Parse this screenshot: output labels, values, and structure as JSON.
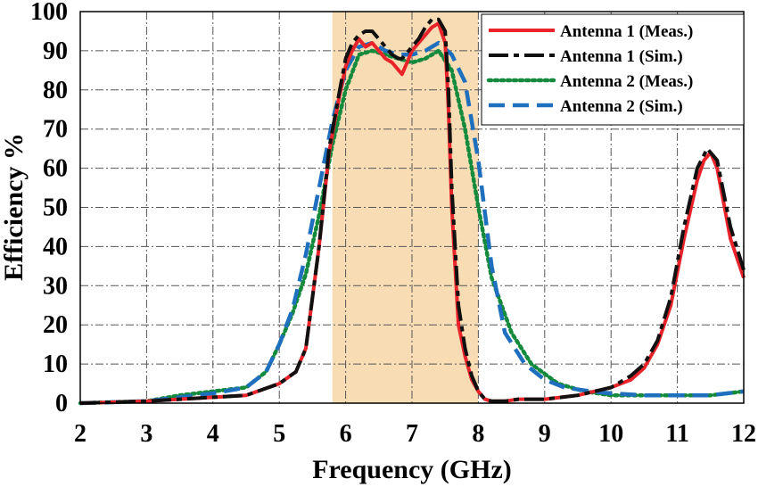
{
  "chart_data": {
    "type": "line",
    "xlabel": "Frequency (GHz)",
    "ylabel": "Efficiency %",
    "xlim": [
      2,
      12
    ],
    "ylim": [
      0,
      100
    ],
    "xticks": [
      2,
      3,
      4,
      5,
      6,
      7,
      8,
      9,
      10,
      11,
      12
    ],
    "yticks": [
      0,
      10,
      20,
      30,
      40,
      50,
      60,
      70,
      80,
      90,
      100
    ],
    "grid": true,
    "legend_position": "top-right",
    "highlight_band": {
      "from": 5.8,
      "to": 8.0,
      "color": "#f8dcb4"
    },
    "series": [
      {
        "name": "Antenna 1 (Meas.)",
        "color": "#e8232a",
        "style": "solid",
        "x": [
          2,
          3,
          3.5,
          4,
          4.5,
          5,
          5.25,
          5.4,
          5.6,
          5.75,
          5.9,
          6.0,
          6.1,
          6.2,
          6.3,
          6.4,
          6.5,
          6.6,
          6.7,
          6.8,
          6.85,
          6.9,
          7.0,
          7.1,
          7.2,
          7.3,
          7.4,
          7.5,
          7.55,
          7.6,
          7.7,
          7.8,
          7.9,
          8.0,
          8.1,
          8.2,
          8.4,
          8.6,
          9,
          9.5,
          10,
          10.3,
          10.5,
          10.7,
          10.9,
          11.1,
          11.3,
          11.4,
          11.5,
          11.6,
          11.8,
          12
        ],
        "y": [
          0,
          0.5,
          1,
          1.5,
          2,
          5,
          8,
          14,
          40,
          64,
          78,
          86,
          90,
          93,
          91,
          92,
          90,
          88,
          87,
          85,
          84,
          86,
          90,
          92,
          94,
          96,
          97,
          92,
          75,
          50,
          20,
          12,
          6,
          3,
          1,
          0.5,
          0.5,
          1,
          1,
          2,
          4,
          6,
          9,
          15,
          25,
          42,
          57,
          62,
          64,
          60,
          42,
          32
        ]
      },
      {
        "name": "Antenna 1 (Sim.)",
        "color": "#111111",
        "style": "longdash",
        "x": [
          2,
          3,
          3.5,
          4,
          4.5,
          5,
          5.25,
          5.4,
          5.6,
          5.75,
          5.9,
          6.0,
          6.1,
          6.2,
          6.3,
          6.4,
          6.5,
          6.6,
          6.7,
          6.8,
          6.85,
          6.9,
          7.0,
          7.1,
          7.2,
          7.3,
          7.4,
          7.5,
          7.55,
          7.6,
          7.7,
          7.8,
          7.9,
          8.0,
          8.1,
          8.2,
          8.4,
          8.6,
          9,
          9.5,
          10,
          10.3,
          10.5,
          10.7,
          10.9,
          11.1,
          11.3,
          11.45,
          11.6,
          11.8,
          12
        ],
        "y": [
          0,
          0.5,
          1,
          1.5,
          2,
          5,
          8,
          14,
          40,
          65,
          79,
          88,
          92,
          94,
          95,
          95,
          93,
          91,
          89,
          88,
          88,
          89,
          91,
          93,
          96,
          98,
          98,
          95,
          80,
          55,
          25,
          14,
          7,
          3,
          1,
          0.5,
          0.5,
          1,
          1,
          2,
          4,
          7,
          10,
          16,
          27,
          45,
          60,
          65,
          62,
          45,
          34
        ]
      },
      {
        "name": "Antenna 2 (Meas.)",
        "color": "#138a3c",
        "style": "dotted",
        "x": [
          2,
          3,
          3.5,
          4,
          4.5,
          4.8,
          5.0,
          5.2,
          5.4,
          5.6,
          5.8,
          6.0,
          6.2,
          6.4,
          6.6,
          6.8,
          7.0,
          7.2,
          7.4,
          7.6,
          7.8,
          8.0,
          8.2,
          8.5,
          8.8,
          9.2,
          9.6,
          10,
          10.5,
          11,
          11.5,
          12
        ],
        "y": [
          0,
          0.5,
          2,
          3,
          4,
          8,
          15,
          23,
          33,
          48,
          66,
          80,
          89,
          90,
          89,
          88,
          87,
          88,
          90,
          85,
          70,
          50,
          32,
          18,
          10,
          5,
          3,
          2,
          2,
          2,
          2,
          3
        ]
      },
      {
        "name": "Antenna 2 (Sim.)",
        "color": "#1f6fbf",
        "style": "dashed",
        "x": [
          2,
          3,
          3.5,
          4,
          4.5,
          4.8,
          5.0,
          5.2,
          5.4,
          5.6,
          5.8,
          6.0,
          6.2,
          6.4,
          6.6,
          6.8,
          7.0,
          7.2,
          7.4,
          7.6,
          7.8,
          8.0,
          8.2,
          8.4,
          8.7,
          9.0,
          9.3,
          9.7,
          10,
          10.5,
          11,
          11.5,
          12
        ],
        "y": [
          0,
          0.5,
          1.5,
          2.5,
          4,
          8,
          15,
          24,
          38,
          55,
          72,
          85,
          91,
          92,
          90,
          89,
          89,
          90,
          92,
          89,
          82,
          62,
          35,
          18,
          10,
          6,
          4,
          3,
          2.5,
          2,
          2,
          2,
          3
        ]
      }
    ]
  }
}
